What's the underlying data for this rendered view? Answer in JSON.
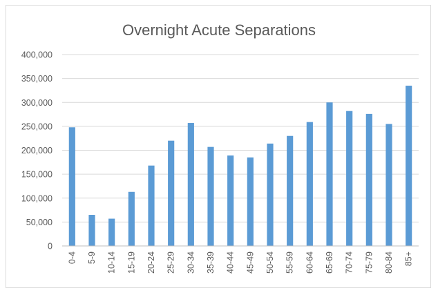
{
  "chart_data": {
    "type": "bar",
    "title": "Overnight Acute Separations",
    "xlabel": "",
    "ylabel": "",
    "categories": [
      "0-4",
      "5-9",
      "10-14",
      "15-19",
      "20-24",
      "25-29",
      "30-34",
      "35-39",
      "40-44",
      "45-49",
      "50-54",
      "55-59",
      "60-64",
      "65-69",
      "70-74",
      "75-79",
      "80-84",
      "85+"
    ],
    "values": [
      248000,
      65000,
      57000,
      113000,
      168000,
      220000,
      257000,
      207000,
      189000,
      185000,
      214000,
      230000,
      259000,
      300000,
      282000,
      276000,
      255000,
      335000
    ],
    "ylim": [
      0,
      400000
    ],
    "yticks": [
      0,
      50000,
      100000,
      150000,
      200000,
      250000,
      300000,
      350000,
      400000
    ],
    "ytick_labels": [
      "0",
      "50,000",
      "100,000",
      "150,000",
      "200,000",
      "250,000",
      "300,000",
      "350,000",
      "400,000"
    ],
    "grid": true,
    "bar_color": "#5b9bd5",
    "grid_color": "#d9d9d9",
    "legend": "none"
  }
}
